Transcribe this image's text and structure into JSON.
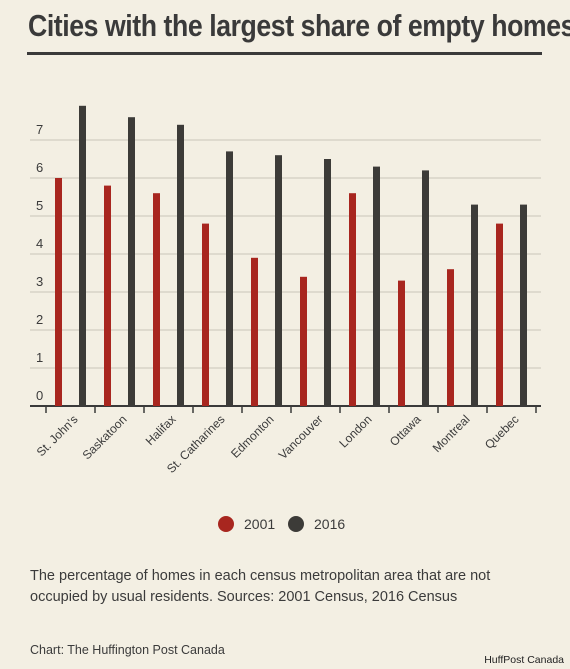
{
  "header": {
    "title": "Cities with the largest share of empty homes"
  },
  "chart_data": {
    "type": "bar",
    "categories": [
      "St. John's",
      "Saskatoon",
      "Halifax",
      "St. Catharines",
      "Edmonton",
      "Vancouver",
      "London",
      "Ottawa",
      "Montreal",
      "Quebec"
    ],
    "series": [
      {
        "name": "2001",
        "values": [
          6.0,
          5.8,
          5.6,
          4.8,
          3.9,
          3.4,
          5.6,
          3.3,
          3.6,
          4.8
        ]
      },
      {
        "name": "2016",
        "values": [
          7.9,
          7.6,
          7.4,
          6.7,
          6.6,
          6.5,
          6.3,
          6.2,
          5.3,
          5.3
        ]
      }
    ],
    "y_ticks": [
      "0",
      "1",
      "2",
      "3",
      "4",
      "5",
      "6",
      "7"
    ],
    "ylim": [
      0,
      8
    ],
    "grid": true,
    "legend_position": "bottom-center",
    "colors": {
      "2001": "#a8261f",
      "2016": "#3c3b38",
      "grid": "#c9c5b8",
      "axis": "#3a3a3a"
    }
  },
  "legend": [
    {
      "label": "2001",
      "color": "#a8261f"
    },
    {
      "label": "2016",
      "color": "#3c3b38"
    }
  ],
  "description": "The percentage of homes in each census metropolitan area that are not occupied by usual residents. Sources: 2001 Census, 2016 Census",
  "credit": "Chart: The Huffington Post Canada",
  "watermark": "HuffPost Canada"
}
